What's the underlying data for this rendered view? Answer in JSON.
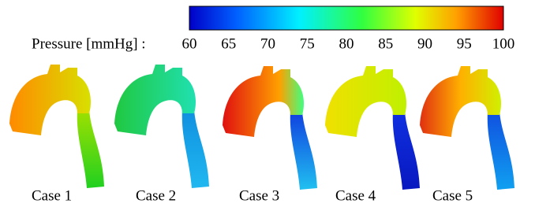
{
  "colorbar": {
    "label": "Pressure [mmHg] :",
    "range": [
      60,
      100
    ],
    "ticks": [
      60,
      65,
      70,
      75,
      80,
      85,
      90,
      95,
      100
    ]
  },
  "cases": [
    {
      "label": "Case 1"
    },
    {
      "label": "Case 2"
    },
    {
      "label": "Case 3"
    },
    {
      "label": "Case 4"
    },
    {
      "label": "Case 5"
    }
  ]
}
